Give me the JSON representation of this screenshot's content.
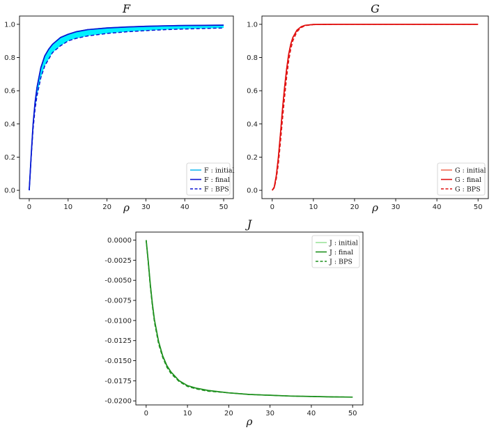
{
  "chart_data": [
    {
      "id": "F",
      "type": "line",
      "title": "F",
      "xlabel": "ρ",
      "ylabel": "",
      "xlim": [
        -2.5,
        52.5
      ],
      "ylim": [
        -0.05,
        1.05
      ],
      "xticks": [
        0,
        10,
        20,
        30,
        40,
        50
      ],
      "yticks": [
        0.0,
        0.2,
        0.4,
        0.6,
        0.8,
        1.0
      ],
      "ytick_labels": [
        "0.0",
        "0.2",
        "0.4",
        "0.6",
        "0.8",
        "1.0"
      ],
      "grid": false,
      "legend_position": "lower-right",
      "fill_between": {
        "lower": "F : BPS",
        "upper": "F : final",
        "color": "#00f0ff"
      },
      "x": [
        0,
        0.5,
        1,
        1.5,
        2,
        3,
        4,
        5,
        6,
        8,
        10,
        12,
        15,
        20,
        25,
        30,
        35,
        40,
        45,
        50
      ],
      "series": [
        {
          "name": "F : initial",
          "color": "#19b9f0",
          "style": "solid",
          "values": [
            0,
            0.21,
            0.4,
            0.53,
            0.62,
            0.74,
            0.81,
            0.85,
            0.88,
            0.92,
            0.94,
            0.955,
            0.968,
            0.978,
            0.984,
            0.988,
            0.991,
            0.993,
            0.994,
            0.995
          ]
        },
        {
          "name": "F : final",
          "color": "#0a14d2",
          "style": "solid",
          "values": [
            0,
            0.21,
            0.4,
            0.53,
            0.62,
            0.74,
            0.81,
            0.85,
            0.88,
            0.92,
            0.94,
            0.955,
            0.968,
            0.978,
            0.984,
            0.988,
            0.991,
            0.993,
            0.994,
            0.995
          ]
        },
        {
          "name": "F : BPS",
          "color": "#0a14d2",
          "style": "dashed",
          "values": [
            0,
            0.2,
            0.37,
            0.49,
            0.57,
            0.68,
            0.75,
            0.79,
            0.83,
            0.87,
            0.9,
            0.915,
            0.93,
            0.945,
            0.955,
            0.962,
            0.968,
            0.972,
            0.975,
            0.978
          ]
        }
      ]
    },
    {
      "id": "G",
      "type": "line",
      "title": "G",
      "xlabel": "ρ",
      "ylabel": "",
      "xlim": [
        -2.5,
        52.5
      ],
      "ylim": [
        -0.05,
        1.05
      ],
      "xticks": [
        0,
        10,
        20,
        30,
        40,
        50
      ],
      "yticks": [
        0.0,
        0.2,
        0.4,
        0.6,
        0.8,
        1.0
      ],
      "ytick_labels": [
        "0.0",
        "0.2",
        "0.4",
        "0.6",
        "0.8",
        "1.0"
      ],
      "grid": false,
      "legend_position": "lower-right",
      "x": [
        0,
        0.5,
        1,
        1.5,
        2,
        2.5,
        3,
        3.5,
        4,
        4.5,
        5,
        6,
        7,
        8,
        10,
        15,
        20,
        30,
        40,
        50
      ],
      "series": [
        {
          "name": "G : initial",
          "color": "#f26f5a",
          "style": "solid",
          "values": [
            0,
            0.02,
            0.09,
            0.2,
            0.34,
            0.49,
            0.62,
            0.73,
            0.82,
            0.88,
            0.92,
            0.965,
            0.985,
            0.994,
            0.999,
            1,
            1,
            1,
            1,
            1
          ]
        },
        {
          "name": "G : final",
          "color": "#e01010",
          "style": "solid",
          "values": [
            0,
            0.02,
            0.09,
            0.2,
            0.34,
            0.49,
            0.62,
            0.73,
            0.82,
            0.88,
            0.92,
            0.965,
            0.985,
            0.994,
            0.999,
            1,
            1,
            1,
            1,
            1
          ]
        },
        {
          "name": "G : BPS",
          "color": "#e01010",
          "style": "dashed",
          "values": [
            0,
            0.015,
            0.07,
            0.16,
            0.29,
            0.43,
            0.56,
            0.68,
            0.78,
            0.85,
            0.9,
            0.955,
            0.98,
            0.992,
            0.998,
            1,
            1,
            1,
            1,
            1
          ]
        }
      ]
    },
    {
      "id": "J",
      "type": "line",
      "title": "J",
      "xlabel": "ρ",
      "ylabel": "",
      "xlim": [
        -2.5,
        52.5
      ],
      "ylim": [
        -0.0205,
        0.001
      ],
      "xticks": [
        0,
        10,
        20,
        30,
        40,
        50
      ],
      "yticks": [
        0.0,
        -0.0025,
        -0.005,
        -0.0075,
        -0.01,
        -0.0125,
        -0.015,
        -0.0175,
        -0.02
      ],
      "ytick_labels": [
        "0.0000",
        "-0.0025",
        "-0.0050",
        "-0.0075",
        "-0.0100",
        "-0.0125",
        "-0.0150",
        "-0.0175",
        "-0.0200"
      ],
      "grid": false,
      "legend_position": "top-right",
      "x": [
        0,
        0.5,
        1,
        1.5,
        2,
        3,
        4,
        5,
        6,
        8,
        10,
        12,
        15,
        20,
        25,
        30,
        35,
        40,
        45,
        50
      ],
      "series": [
        {
          "name": "J : initial",
          "color": "#9be29b",
          "style": "solid",
          "values": [
            0,
            -0.0026,
            -0.0055,
            -0.0079,
            -0.0099,
            -0.0126,
            -0.0144,
            -0.0156,
            -0.0164,
            -0.0175,
            -0.0181,
            -0.0184,
            -0.0187,
            -0.019,
            -0.0192,
            -0.0193,
            -0.0194,
            -0.01945,
            -0.0195,
            -0.01953
          ]
        },
        {
          "name": "J : final",
          "color": "#1e8f1e",
          "style": "solid",
          "values": [
            0,
            -0.0026,
            -0.0055,
            -0.0079,
            -0.0099,
            -0.0126,
            -0.0144,
            -0.0156,
            -0.0164,
            -0.0175,
            -0.0181,
            -0.0184,
            -0.0187,
            -0.019,
            -0.0192,
            -0.0193,
            -0.0194,
            -0.01945,
            -0.0195,
            -0.01953
          ]
        },
        {
          "name": "J : BPS",
          "color": "#1e8f1e",
          "style": "dashed",
          "values": [
            0,
            -0.0028,
            -0.0058,
            -0.0082,
            -0.0102,
            -0.0129,
            -0.0146,
            -0.0158,
            -0.0166,
            -0.0176,
            -0.0182,
            -0.0185,
            -0.0188,
            -0.019,
            -0.0192,
            -0.0193,
            -0.0194,
            -0.01945,
            -0.0195,
            -0.01953
          ]
        }
      ]
    }
  ]
}
